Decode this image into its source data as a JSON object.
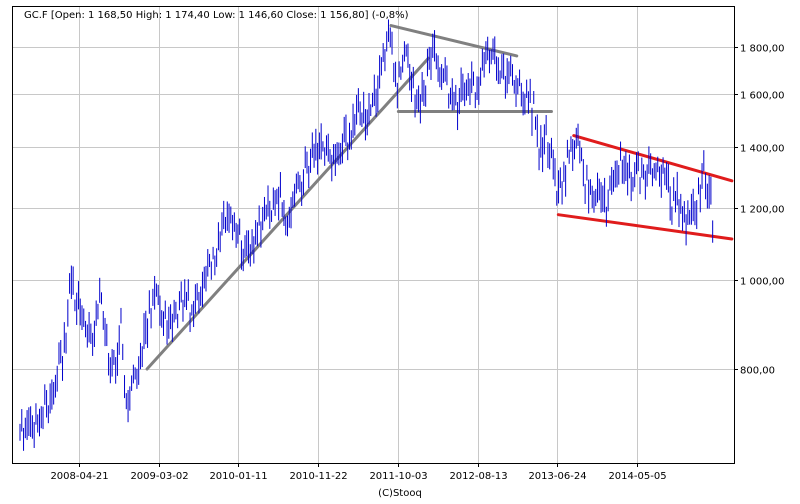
{
  "chart_data": {
    "type": "line",
    "title": "GC.F [Open: 1 168,50  High: 1 174,40  Low: 1 146,60  Close: 1 156,80] (-0,8%)",
    "xlabel": "",
    "ylabel": "",
    "x_tick_labels": [
      "2008-04-21",
      "2009-03-02",
      "2010-01-11",
      "2010-11-22",
      "2011-10-03",
      "2012-08-13",
      "2013-06-24",
      "2014-05-05"
    ],
    "y_ticks": [
      800,
      1000,
      1200,
      1400,
      1600,
      1800
    ],
    "y_tick_labels": [
      "800,00",
      "1 000,00",
      "1 200,00",
      "1 400,00",
      "1 600,00",
      "1 800,00"
    ],
    "ylim": [
      640,
      1950
    ],
    "y_scale": "log",
    "grid": true,
    "footer": "(C)Stooq",
    "colors": {
      "price": "#0000cc",
      "support_resistance": "#808080",
      "channel": "#e01c1c"
    },
    "series": [
      {
        "x": [
          "2007-09-01",
          "2007-10-15",
          "2007-12-01",
          "2008-01-15",
          "2008-03-01",
          "2008-03-17",
          "2008-05-01",
          "2008-06-15",
          "2008-07-15",
          "2008-08-15",
          "2008-09-15",
          "2008-10-01",
          "2008-10-24",
          "2008-11-15",
          "2008-12-15",
          "2009-01-15",
          "2009-02-20",
          "2009-04-01",
          "2009-05-01",
          "2009-06-01",
          "2009-07-01",
          "2009-08-01",
          "2009-09-01",
          "2009-10-15",
          "2009-12-02",
          "2010-01-01",
          "2010-02-05",
          "2010-03-15",
          "2010-05-01",
          "2010-06-20",
          "2010-07-28",
          "2010-09-01",
          "2010-10-15",
          "2010-11-09",
          "2010-12-07",
          "2011-01-27",
          "2011-03-01",
          "2011-04-01",
          "2011-05-02",
          "2011-06-01",
          "2011-07-01",
          "2011-08-01",
          "2011-08-22",
          "2011-09-06",
          "2011-09-26",
          "2011-10-15",
          "2011-11-08",
          "2011-12-15",
          "2011-12-29",
          "2012-01-31",
          "2012-02-28",
          "2012-03-15",
          "2012-04-15",
          "2012-05-16",
          "2012-06-15",
          "2012-07-15",
          "2012-08-15",
          "2012-09-15",
          "2012-10-04",
          "2012-11-01",
          "2012-12-01",
          "2013-01-01",
          "2013-02-01",
          "2013-03-01",
          "2013-04-01",
          "2013-04-16",
          "2013-05-01",
          "2013-06-01",
          "2013-06-28",
          "2013-07-15",
          "2013-08-28",
          "2013-09-15",
          "2013-10-15",
          "2013-11-15",
          "2013-12-31",
          "2014-01-15",
          "2014-02-15",
          "2014-03-17",
          "2014-04-15",
          "2014-05-15",
          "2014-06-15",
          "2014-07-10",
          "2014-08-15",
          "2014-09-15",
          "2014-10-15",
          "2014-11-06",
          "2014-11-20",
          "2014-12-05",
          "2014-12-20",
          "2015-01-10",
          "2015-01-22",
          "2015-02-05",
          "2015-02-20",
          "2015-03-05"
        ],
        "close": [
          680,
          700,
          720,
          760,
          860,
          1000,
          900,
          880,
          940,
          830,
          780,
          920,
          730,
          760,
          830,
          880,
          980,
          900,
          920,
          950,
          940,
          950,
          1000,
          1060,
          1200,
          1120,
          1080,
          1110,
          1180,
          1250,
          1160,
          1250,
          1340,
          1380,
          1390,
          1340,
          1420,
          1450,
          1540,
          1520,
          1560,
          1700,
          1850,
          1880,
          1620,
          1650,
          1760,
          1570,
          1540,
          1720,
          1780,
          1640,
          1640,
          1540,
          1600,
          1620,
          1640,
          1760,
          1790,
          1720,
          1700,
          1680,
          1600,
          1590,
          1520,
          1390,
          1440,
          1380,
          1230,
          1290,
          1420,
          1380,
          1290,
          1260,
          1200,
          1250,
          1320,
          1380,
          1290,
          1290,
          1320,
          1340,
          1300,
          1230,
          1220,
          1150,
          1180,
          1210,
          1190,
          1260,
          1300,
          1270,
          1230,
          1160
        ]
      }
    ],
    "annotations": {
      "gray_lines": [
        {
          "from": {
            "x": "2009-01-15",
            "y": 800
          },
          "to": {
            "x": "2012-02-01",
            "y": 1750
          }
        },
        {
          "from": {
            "x": "2011-09-06",
            "y": 1900
          },
          "to": {
            "x": "2013-01-15",
            "y": 1760
          }
        },
        {
          "from": {
            "x": "2011-10-05",
            "y": 1530
          },
          "to": {
            "x": "2013-06-01",
            "y": 1530
          }
        }
      ],
      "red_lines": [
        {
          "from": {
            "x": "2013-08-28",
            "y": 1440
          },
          "to": {
            "x": "2015-05-15",
            "y": 1285
          }
        },
        {
          "from": {
            "x": "2013-06-28",
            "y": 1180
          },
          "to": {
            "x": "2015-05-15",
            "y": 1110
          }
        }
      ]
    }
  }
}
